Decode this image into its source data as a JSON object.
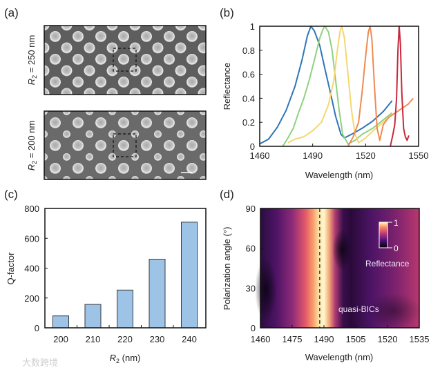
{
  "panels": {
    "a": {
      "label": "(a)",
      "top_label": "R2 = 250 nm",
      "bottom_label": "R2 = 200 nm",
      "r_symbol": "R",
      "r_sub": "2",
      "top_value": " = 250 nm",
      "bottom_value": " = 200 nm"
    },
    "b": {
      "label": "(b)"
    },
    "c": {
      "label": "(c)"
    },
    "d": {
      "label": "(d)"
    }
  },
  "watermark": "大数跨境",
  "chart_data": [
    {
      "id": "b",
      "type": "line",
      "xlabel": "Wavelength (nm)",
      "ylabel": "Reflectance",
      "xlim": [
        1460,
        1550
      ],
      "ylim": [
        0,
        1
      ],
      "xticks": [
        "1460",
        "1490",
        "1520",
        "1550"
      ],
      "yticks": [
        "0",
        "0.2",
        "0.4",
        "0.6",
        "0.8",
        "1"
      ],
      "series": [
        {
          "name": "blue",
          "color": "#2e75b6",
          "x": [
            1460,
            1465,
            1470,
            1475,
            1480,
            1484,
            1487,
            1489,
            1491,
            1494,
            1497,
            1500,
            1503,
            1506,
            1508,
            1512,
            1518,
            1524,
            1530,
            1535
          ],
          "y": [
            0.02,
            0.06,
            0.16,
            0.3,
            0.5,
            0.72,
            0.92,
            1.0,
            0.96,
            0.84,
            0.64,
            0.45,
            0.25,
            0.1,
            0.07,
            0.1,
            0.15,
            0.21,
            0.29,
            0.38
          ]
        },
        {
          "name": "green",
          "color": "#8fd17f",
          "x": [
            1473,
            1476,
            1479,
            1482,
            1485,
            1488,
            1491,
            1494,
            1496,
            1497,
            1499,
            1501,
            1503,
            1505,
            1507,
            1510,
            1514,
            1518,
            1524,
            1530,
            1535
          ],
          "y": [
            0,
            0.07,
            0.15,
            0.28,
            0.4,
            0.55,
            0.72,
            0.9,
            0.98,
            1.0,
            0.95,
            0.8,
            0.55,
            0.3,
            0.1,
            0.02,
            0.05,
            0.1,
            0.15,
            0.22,
            0.28
          ]
        },
        {
          "name": "yellow",
          "color": "#f5d76e",
          "x": [
            1476,
            1480,
            1485,
            1490,
            1495,
            1499,
            1502,
            1504,
            1505.5,
            1506.5,
            1508,
            1510,
            1512,
            1514,
            1516,
            1520,
            1525,
            1530,
            1535
          ],
          "y": [
            0.03,
            0.06,
            0.08,
            0.13,
            0.2,
            0.35,
            0.55,
            0.8,
            0.96,
            1.0,
            0.9,
            0.6,
            0.3,
            0.1,
            0.03,
            0.07,
            0.14,
            0.2,
            0.27
          ]
        },
        {
          "name": "orange",
          "color": "#f08a50",
          "x": [
            1510,
            1513,
            1516,
            1518,
            1520,
            1521.5,
            1522.5,
            1523.5,
            1525,
            1526.5,
            1528,
            1530,
            1533,
            1536,
            1540,
            1544,
            1547
          ],
          "y": [
            0,
            0.08,
            0.2,
            0.45,
            0.75,
            0.95,
            1.0,
            0.9,
            0.5,
            0.15,
            0.05,
            0.18,
            0.24,
            0.27,
            0.31,
            0.35,
            0.4
          ]
        },
        {
          "name": "red",
          "color": "#c8283c",
          "x": [
            1534,
            1535.5,
            1536.5,
            1537.5,
            1538.3,
            1539,
            1539.7,
            1540.5,
            1541.5,
            1542.5,
            1543.5,
            1544.5
          ],
          "y": [
            0,
            0.1,
            0.18,
            0.4,
            0.8,
            1.0,
            0.85,
            0.45,
            0.15,
            0.08,
            0.05,
            0.09
          ]
        }
      ]
    },
    {
      "id": "c",
      "type": "bar",
      "xlabel": "R2 (nm)",
      "xlabel_symbol": "R",
      "xlabel_sub": "2",
      "xlabel_unit": " (nm)",
      "ylabel": "Q-factor",
      "categories": [
        "200",
        "210",
        "220",
        "230",
        "240"
      ],
      "values": [
        80,
        157,
        253,
        460,
        708
      ],
      "ylim": [
        0,
        800
      ],
      "yticks": [
        "0",
        "200",
        "400",
        "600",
        "800"
      ],
      "bar_color": "#9dc3e6"
    },
    {
      "id": "d",
      "type": "heatmap",
      "xlabel": "Wavelength (nm)",
      "ylabel": "Polarization angle (°)",
      "xlim": [
        1460,
        1535
      ],
      "ylim": [
        0,
        90
      ],
      "xticks": [
        "1460",
        "1475",
        "1490",
        "1505",
        "1520",
        "1535"
      ],
      "yticks": [
        "0",
        "30",
        "60",
        "90"
      ],
      "dashed_line_x": 1488,
      "colorbar": {
        "label": "Reflectance",
        "min": "0",
        "max": "1"
      },
      "annotation": "quasi-BICs",
      "colormap": "magma"
    }
  ]
}
